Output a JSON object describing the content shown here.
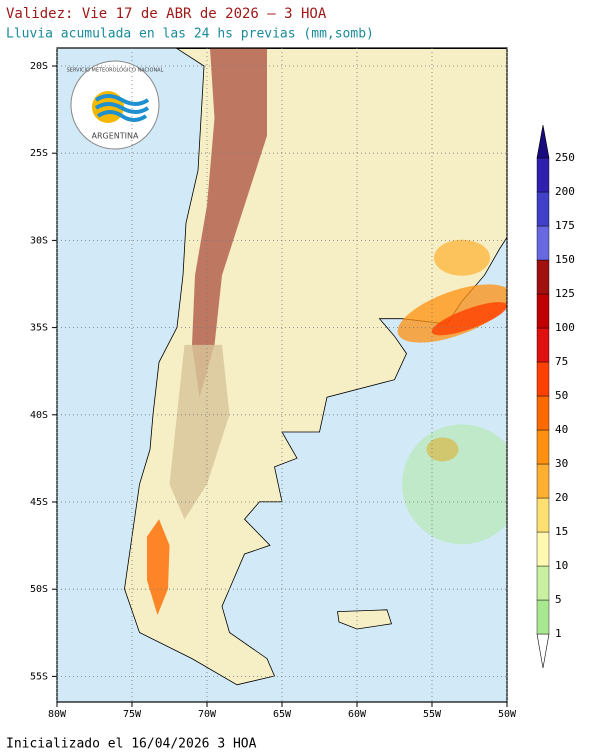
{
  "header": {
    "title": "Validez: Vie 17 de ABR de 2026 — 3 HOA",
    "subtitle": "Lluvia acumulada en las 24 hs previas (mm,somb)"
  },
  "logo": {
    "agency": "SERVICIO METEOROLÓGICO NACIONAL",
    "country": "ARGENTINA"
  },
  "map": {
    "lat_labels": [
      "20S",
      "25S",
      "30S",
      "35S",
      "40S",
      "45S",
      "50S",
      "55S"
    ],
    "lon_labels": [
      "80W",
      "75W",
      "70W",
      "65W",
      "60W",
      "55W",
      "50W"
    ]
  },
  "colorbar": {
    "levels": [
      1,
      5,
      10,
      15,
      20,
      30,
      40,
      50,
      75,
      100,
      125,
      150,
      175,
      200,
      250
    ],
    "colors": [
      "#ffffff",
      "#a8e890",
      "#c8f0a0",
      "#fff8b0",
      "#ffe070",
      "#ffb030",
      "#ff9010",
      "#ff6a00",
      "#ff4000",
      "#e01010",
      "#c00000",
      "#a01010",
      "#6868e0",
      "#4040c8",
      "#3020b0",
      "#1a0a80"
    ]
  },
  "footer": {
    "initialized": "Inicializado el 16/04/2026 3 HOA"
  }
}
